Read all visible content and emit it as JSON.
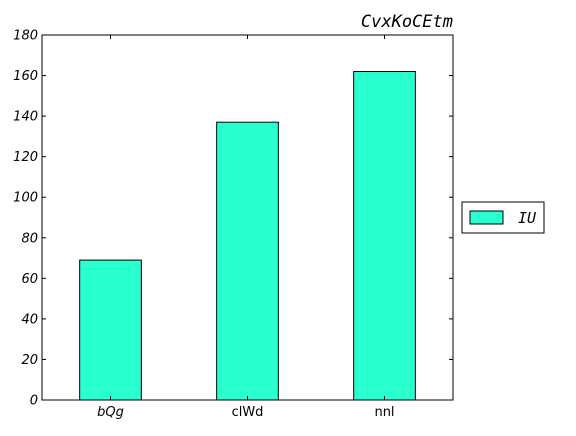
{
  "chart_data": {
    "type": "bar",
    "title": "CvxKoCEtm",
    "xlabel": "",
    "ylabel": "",
    "categories": [
      "bQg",
      "clWd",
      "nnl"
    ],
    "series": [
      {
        "name": "IU",
        "values": [
          69,
          137,
          162
        ],
        "color": "#2affd0"
      }
    ],
    "ylim": [
      0,
      180
    ],
    "yticks": [
      0,
      20,
      40,
      60,
      80,
      100,
      120,
      140,
      160,
      180
    ],
    "ytick_labels": [
      "0",
      "20",
      "40",
      "60",
      "80",
      "100",
      "120",
      "140",
      "160",
      "180"
    ],
    "grid": false,
    "legend_position": "right"
  }
}
